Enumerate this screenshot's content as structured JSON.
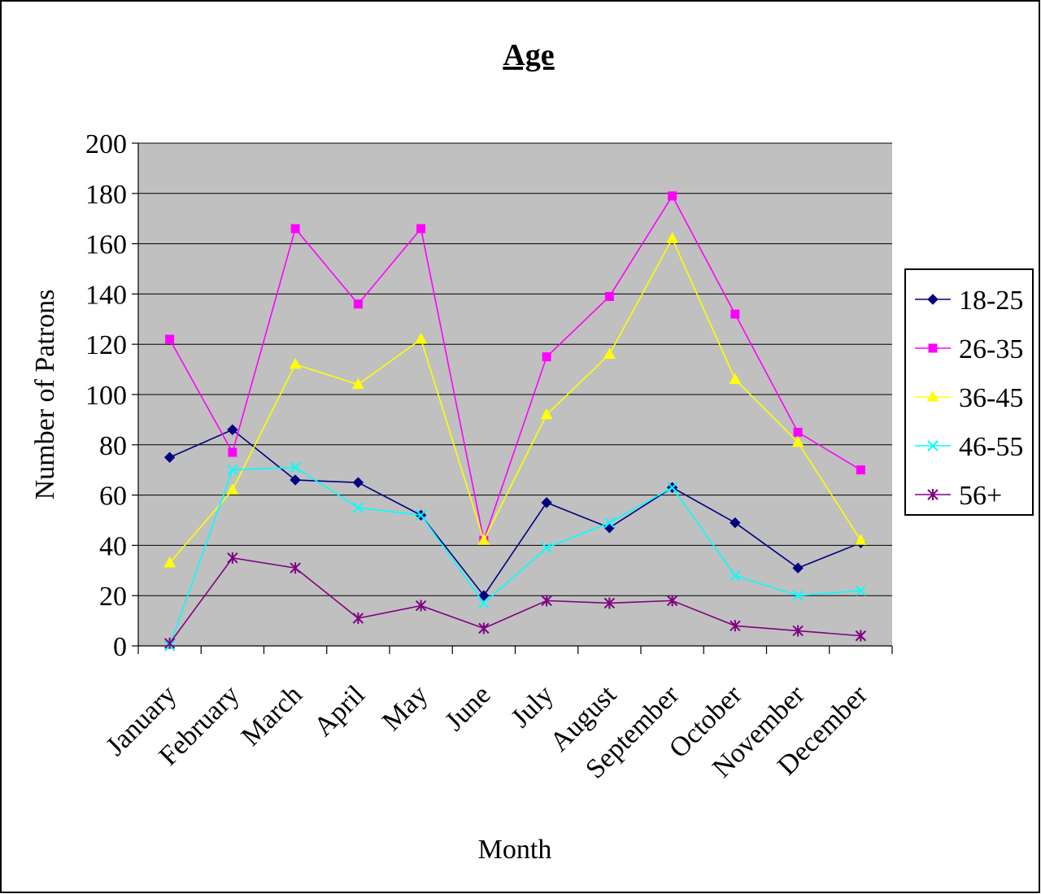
{
  "chart_data": {
    "type": "line",
    "title": "Age",
    "xlabel": "Month",
    "ylabel": "Number of Patrons",
    "ylim": [
      0,
      200
    ],
    "y_ticks": [
      0,
      20,
      40,
      60,
      80,
      100,
      120,
      140,
      160,
      180,
      200
    ],
    "grid": true,
    "plot_background": "#c0c0c0",
    "legend_position": "right",
    "categories": [
      "January",
      "February",
      "March",
      "April",
      "May",
      "June",
      "July",
      "August",
      "September",
      "October",
      "November",
      "December"
    ],
    "series": [
      {
        "name": "18-25",
        "color": "#000080",
        "marker": "diamond",
        "values": [
          75,
          86,
          66,
          65,
          52,
          20,
          57,
          47,
          63,
          49,
          31,
          41
        ]
      },
      {
        "name": "26-35",
        "color": "#ff00ff",
        "marker": "square",
        "values": [
          122,
          77,
          166,
          136,
          166,
          42,
          115,
          139,
          179,
          132,
          85,
          70
        ]
      },
      {
        "name": "36-45",
        "color": "#ffff00",
        "marker": "triangle",
        "values": [
          33,
          62,
          112,
          104,
          122,
          42,
          92,
          116,
          162,
          106,
          81,
          42
        ]
      },
      {
        "name": "46-55",
        "color": "#00ffff",
        "marker": "x",
        "values": [
          0,
          70,
          71,
          55,
          52,
          17,
          39,
          49,
          63,
          28,
          20,
          22
        ]
      },
      {
        "name": "56+",
        "color": "#800080",
        "marker": "star",
        "values": [
          1,
          35,
          31,
          11,
          16,
          7,
          18,
          17,
          18,
          8,
          6,
          4
        ]
      }
    ]
  }
}
